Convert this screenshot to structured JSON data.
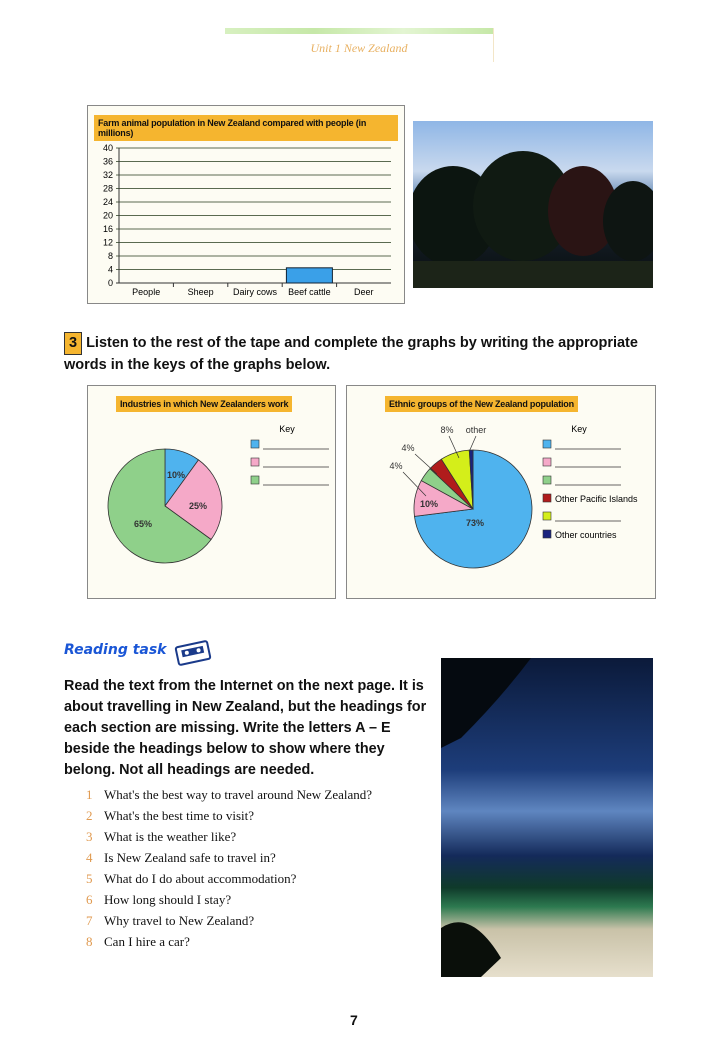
{
  "header": {
    "title": "Unit 1 New Zealand"
  },
  "bar_chart": {
    "chart_data": {
      "type": "bar",
      "title": "Farm animal population in New Zealand compared with people (in millions)",
      "categories": [
        "People",
        "Sheep",
        "Dairy cows",
        "Beef cattle",
        "Deer"
      ],
      "values": [
        null,
        null,
        null,
        4.5,
        null
      ],
      "yticks": [
        0,
        4,
        8,
        12,
        16,
        20,
        24,
        28,
        32,
        36,
        40
      ],
      "ylim": [
        0,
        40
      ],
      "grid": true,
      "bar_color": "#3aa0e8"
    }
  },
  "exercise3": {
    "number": "3",
    "text": "Listen to the rest of the tape and complete the graphs by writing the appropriate words in the keys of the graphs below."
  },
  "pie1": {
    "chart_data": {
      "type": "pie",
      "title": "Industries in which New Zealanders work",
      "key_label": "Key",
      "slices": [
        {
          "value": 10,
          "label": "10%",
          "color": "#4fb3ee",
          "key": ""
        },
        {
          "value": 25,
          "label": "25%",
          "color": "#f5a9c8",
          "key": ""
        },
        {
          "value": 65,
          "label": "65%",
          "color": "#8fd08a",
          "key": ""
        }
      ]
    }
  },
  "pie2": {
    "chart_data": {
      "type": "pie",
      "title": "Ethnic groups of the New Zealand population",
      "key_label": "Key",
      "slices": [
        {
          "value": 73,
          "label": "73%",
          "color": "#4fb3ee",
          "key": ""
        },
        {
          "value": 10,
          "label": "10%",
          "color": "#f5a9c8",
          "key": ""
        },
        {
          "value": 4,
          "label": "4%",
          "color": "#8fd08a",
          "key": ""
        },
        {
          "value": 4,
          "label": "4%",
          "color": "#b01c1c",
          "key": "Other Pacific Islands"
        },
        {
          "value": 8,
          "label": "8%",
          "color": "#d4ee1a",
          "key": ""
        },
        {
          "value": 1,
          "label": "other",
          "color": "#1a237e",
          "key": "Other countries"
        }
      ]
    }
  },
  "reading": {
    "title": "Reading task",
    "instructions": "Read the text from the Internet on the next page. It is about travelling in New Zealand, but the headings for each section are missing. Write the letters A – E beside the headings below to show where they belong. Not all headings are needed.",
    "questions": [
      {
        "n": "1",
        "text": "What's the best way to travel around New Zealand?"
      },
      {
        "n": "2",
        "text": "What's the best time to visit?"
      },
      {
        "n": "3",
        "text": "What is the weather like?"
      },
      {
        "n": "4",
        "text": "Is New Zealand safe to travel in?"
      },
      {
        "n": "5",
        "text": "What do I do about accommodation?"
      },
      {
        "n": "6",
        "text": "How long should I stay?"
      },
      {
        "n": "7",
        "text": "Why travel to New Zealand?"
      },
      {
        "n": "8",
        "text": "Can I hire a car?"
      }
    ]
  },
  "page_number": "7"
}
